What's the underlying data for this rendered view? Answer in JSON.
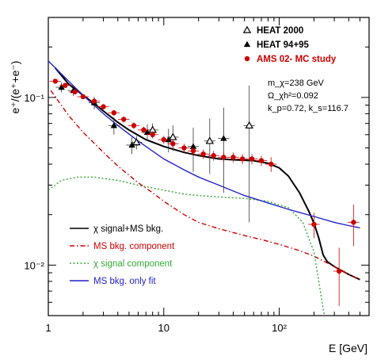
{
  "chart_data": {
    "type": "scatter",
    "xlabel": "E [GeV]",
    "ylabel": "e⁺/(e⁺+e⁻)",
    "xscale": "log",
    "yscale": "log",
    "xlim": [
      1,
      600
    ],
    "ylim": [
      0.005,
      0.3
    ],
    "x_ticks": [
      1,
      10,
      100
    ],
    "x_tick_labels": [
      "1",
      "10",
      "10²"
    ],
    "y_ticks": [
      0.1,
      0.01
    ],
    "y_tick_labels": [
      "10⁻¹",
      "10⁻²"
    ],
    "grid": false,
    "legend_points": {
      "position": "top-right",
      "entries": [
        {
          "label": "HEAT 2000",
          "marker": "open-triangle",
          "color": "#000000"
        },
        {
          "label": "HEAT 94+95",
          "marker": "filled-triangle",
          "color": "#000000"
        },
        {
          "label": "AMS 02- MC study",
          "marker": "circle",
          "color": "#cc0000"
        }
      ]
    },
    "legend_lines": {
      "position": "bottom-left",
      "entries": [
        {
          "label": "χ signal+MS bkg.",
          "color": "#000000",
          "style": "solid"
        },
        {
          "label": "MS bkg. component",
          "color": "#cc0000",
          "style": "dash-dot"
        },
        {
          "label": "χ signal component",
          "color": "#33aa33",
          "style": "dotted"
        },
        {
          "label": "MS bkg. only fit",
          "color": "#2222cc",
          "style": "solid"
        }
      ]
    },
    "annotations": [
      "m_χ=238 GeV",
      "Ω_χh²=0.092",
      "k_p=0.72, k_s=116.7"
    ],
    "series": [
      {
        "name": "HEAT 94+95",
        "marker": "filled-triangle",
        "color": "#000000",
        "points": [
          {
            "x": 1.3,
            "y": 0.115,
            "yerr": 0.008
          },
          {
            "x": 1.65,
            "y": 0.11,
            "yerr": 0.008
          },
          {
            "x": 2.5,
            "y": 0.093,
            "yerr": 0.008
          },
          {
            "x": 3.7,
            "y": 0.068,
            "yerr": 0.008
          },
          {
            "x": 5.3,
            "y": 0.052,
            "yerr": 0.006
          },
          {
            "x": 7.2,
            "y": 0.062,
            "yerr": 0.007
          },
          {
            "x": 11.0,
            "y": 0.056,
            "yerr": 0.009
          },
          {
            "x": 18.0,
            "y": 0.051,
            "yerr": 0.015
          },
          {
            "x": 33.0,
            "y": 0.057,
            "yerr": 0.03
          }
        ]
      },
      {
        "name": "HEAT 2000",
        "marker": "open-triangle",
        "color": "#000000",
        "points": [
          {
            "x": 5.8,
            "y": 0.054,
            "yerr": 0.005
          },
          {
            "x": 8.0,
            "y": 0.064,
            "yerr": 0.006
          },
          {
            "x": 12.0,
            "y": 0.058,
            "yerr": 0.01
          },
          {
            "x": 25.0,
            "y": 0.055,
            "yerr": 0.02
          },
          {
            "x": 55.0,
            "y": 0.068,
            "yerr": 0.05
          }
        ]
      },
      {
        "name": "AMS 02- MC study",
        "marker": "circle",
        "color": "#cc0000",
        "points": [
          {
            "x": 1.15,
            "y": 0.125,
            "yerr": 0.003
          },
          {
            "x": 1.4,
            "y": 0.118,
            "yerr": 0.003
          },
          {
            "x": 1.7,
            "y": 0.108,
            "yerr": 0.003
          },
          {
            "x": 2.0,
            "y": 0.101,
            "yerr": 0.003
          },
          {
            "x": 2.5,
            "y": 0.095,
            "yerr": 0.003
          },
          {
            "x": 3.0,
            "y": 0.088,
            "yerr": 0.003
          },
          {
            "x": 3.7,
            "y": 0.081,
            "yerr": 0.003
          },
          {
            "x": 4.5,
            "y": 0.074,
            "yerr": 0.003
          },
          {
            "x": 5.5,
            "y": 0.068,
            "yerr": 0.003
          },
          {
            "x": 6.7,
            "y": 0.064,
            "yerr": 0.003
          },
          {
            "x": 8.0,
            "y": 0.06,
            "yerr": 0.003
          },
          {
            "x": 10.0,
            "y": 0.056,
            "yerr": 0.003
          },
          {
            "x": 12.0,
            "y": 0.053,
            "yerr": 0.003
          },
          {
            "x": 15.0,
            "y": 0.05,
            "yerr": 0.003
          },
          {
            "x": 18.0,
            "y": 0.048,
            "yerr": 0.003
          },
          {
            "x": 22.0,
            "y": 0.046,
            "yerr": 0.003
          },
          {
            "x": 27.0,
            "y": 0.045,
            "yerr": 0.003
          },
          {
            "x": 33.0,
            "y": 0.044,
            "yerr": 0.003
          },
          {
            "x": 40.0,
            "y": 0.044,
            "yerr": 0.003
          },
          {
            "x": 48.0,
            "y": 0.043,
            "yerr": 0.003
          },
          {
            "x": 58.0,
            "y": 0.043,
            "yerr": 0.003
          },
          {
            "x": 70.0,
            "y": 0.042,
            "yerr": 0.003
          },
          {
            "x": 85.0,
            "y": 0.04,
            "yerr": 0.004
          },
          {
            "x": 200.0,
            "y": 0.0175,
            "yerr": 0.003
          },
          {
            "x": 330.0,
            "y": 0.0092,
            "yerr": 0.0035
          },
          {
            "x": 440.0,
            "y": 0.018,
            "yerr": 0.005
          }
        ]
      }
    ],
    "curves": [
      {
        "name": "χ signal+MS bkg.",
        "color": "#000000",
        "style": "solid",
        "x": [
          1.15,
          1.5,
          2,
          2.5,
          3,
          4,
          5,
          7,
          10,
          15,
          20,
          30,
          40,
          60,
          80,
          100,
          120,
          150,
          180,
          200,
          220,
          240,
          260,
          300,
          400,
          500
        ],
        "y": [
          0.15,
          0.12,
          0.103,
          0.092,
          0.083,
          0.071,
          0.064,
          0.056,
          0.051,
          0.047,
          0.045,
          0.043,
          0.0425,
          0.042,
          0.0405,
          0.038,
          0.034,
          0.027,
          0.021,
          0.0178,
          0.0145,
          0.0115,
          0.0105,
          0.0098,
          0.0088,
          0.0082
        ]
      },
      {
        "name": "MS bkg. component",
        "color": "#cc0000",
        "style": "dash-dot",
        "x": [
          1.05,
          1.5,
          2,
          3,
          4,
          6,
          8,
          10,
          15,
          20,
          30,
          50,
          70,
          100,
          150,
          200,
          300,
          400,
          500
        ],
        "y": [
          0.11,
          0.078,
          0.062,
          0.047,
          0.039,
          0.031,
          0.027,
          0.024,
          0.02,
          0.018,
          0.0165,
          0.015,
          0.0142,
          0.0133,
          0.0122,
          0.0113,
          0.0098,
          0.0088,
          0.0082
        ]
      },
      {
        "name": "χ signal component",
        "color": "#33aa33",
        "style": "dotted",
        "x": [
          1.0,
          1.3,
          1.8,
          2.5,
          4,
          6,
          10,
          15,
          20,
          30,
          50,
          80,
          120,
          160,
          200,
          220,
          240,
          260
        ],
        "y": [
          0.028,
          0.032,
          0.0335,
          0.0335,
          0.032,
          0.03,
          0.028,
          0.0265,
          0.026,
          0.0255,
          0.025,
          0.024,
          0.022,
          0.018,
          0.012,
          0.008,
          0.0055,
          0.0042
        ]
      },
      {
        "name": "MS bkg. only fit",
        "color": "#2222cc",
        "style": "solid",
        "x": [
          1.0,
          1.5,
          2,
          3,
          4,
          6,
          10,
          15,
          20,
          30,
          50,
          80,
          120,
          200,
          300,
          400,
          500
        ],
        "y": [
          0.165,
          0.125,
          0.103,
          0.08,
          0.068,
          0.055,
          0.043,
          0.037,
          0.0335,
          0.03,
          0.026,
          0.0235,
          0.0215,
          0.0195,
          0.018,
          0.0172,
          0.0167
        ]
      }
    ]
  }
}
